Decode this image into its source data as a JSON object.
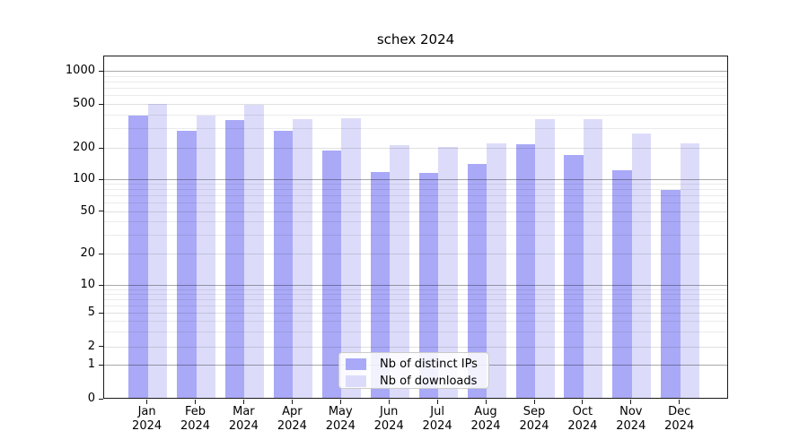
{
  "chart_data": {
    "type": "bar",
    "title": "schex 2024",
    "categories": [
      "Jan",
      "Feb",
      "Mar",
      "Apr",
      "May",
      "Jun",
      "Jul",
      "Aug",
      "Sep",
      "Oct",
      "Nov",
      "Dec"
    ],
    "x_tick_year_line": "2024",
    "series": [
      {
        "name": "Nb of distinct IPs",
        "color": "#a9a9f7",
        "values": [
          392,
          287,
          355,
          285,
          190,
          118,
          114,
          139,
          216,
          171,
          122,
          79
        ]
      },
      {
        "name": "Nb of downloads",
        "color": "#dcdcfa",
        "values": [
          504,
          395,
          490,
          366,
          368,
          211,
          203,
          221,
          367,
          362,
          269,
          219
        ]
      }
    ],
    "y_axis": {
      "scale": "symlog",
      "ticks": [
        0,
        1,
        2,
        5,
        10,
        20,
        50,
        100,
        200,
        500,
        1000
      ],
      "tick_labels": [
        "0",
        "1",
        "2",
        "5",
        "10",
        "20",
        "50",
        "100",
        "200",
        "500",
        "1000"
      ],
      "major_gridlines": [
        1,
        10,
        100,
        1000
      ],
      "minor_gridlines": [
        3,
        4,
        6,
        7,
        8,
        9,
        30,
        40,
        60,
        70,
        80,
        90,
        300,
        400,
        600,
        700,
        800,
        900
      ],
      "ylim": [
        0,
        1360
      ]
    },
    "legend": {
      "location": "lower center"
    },
    "grid": true
  }
}
